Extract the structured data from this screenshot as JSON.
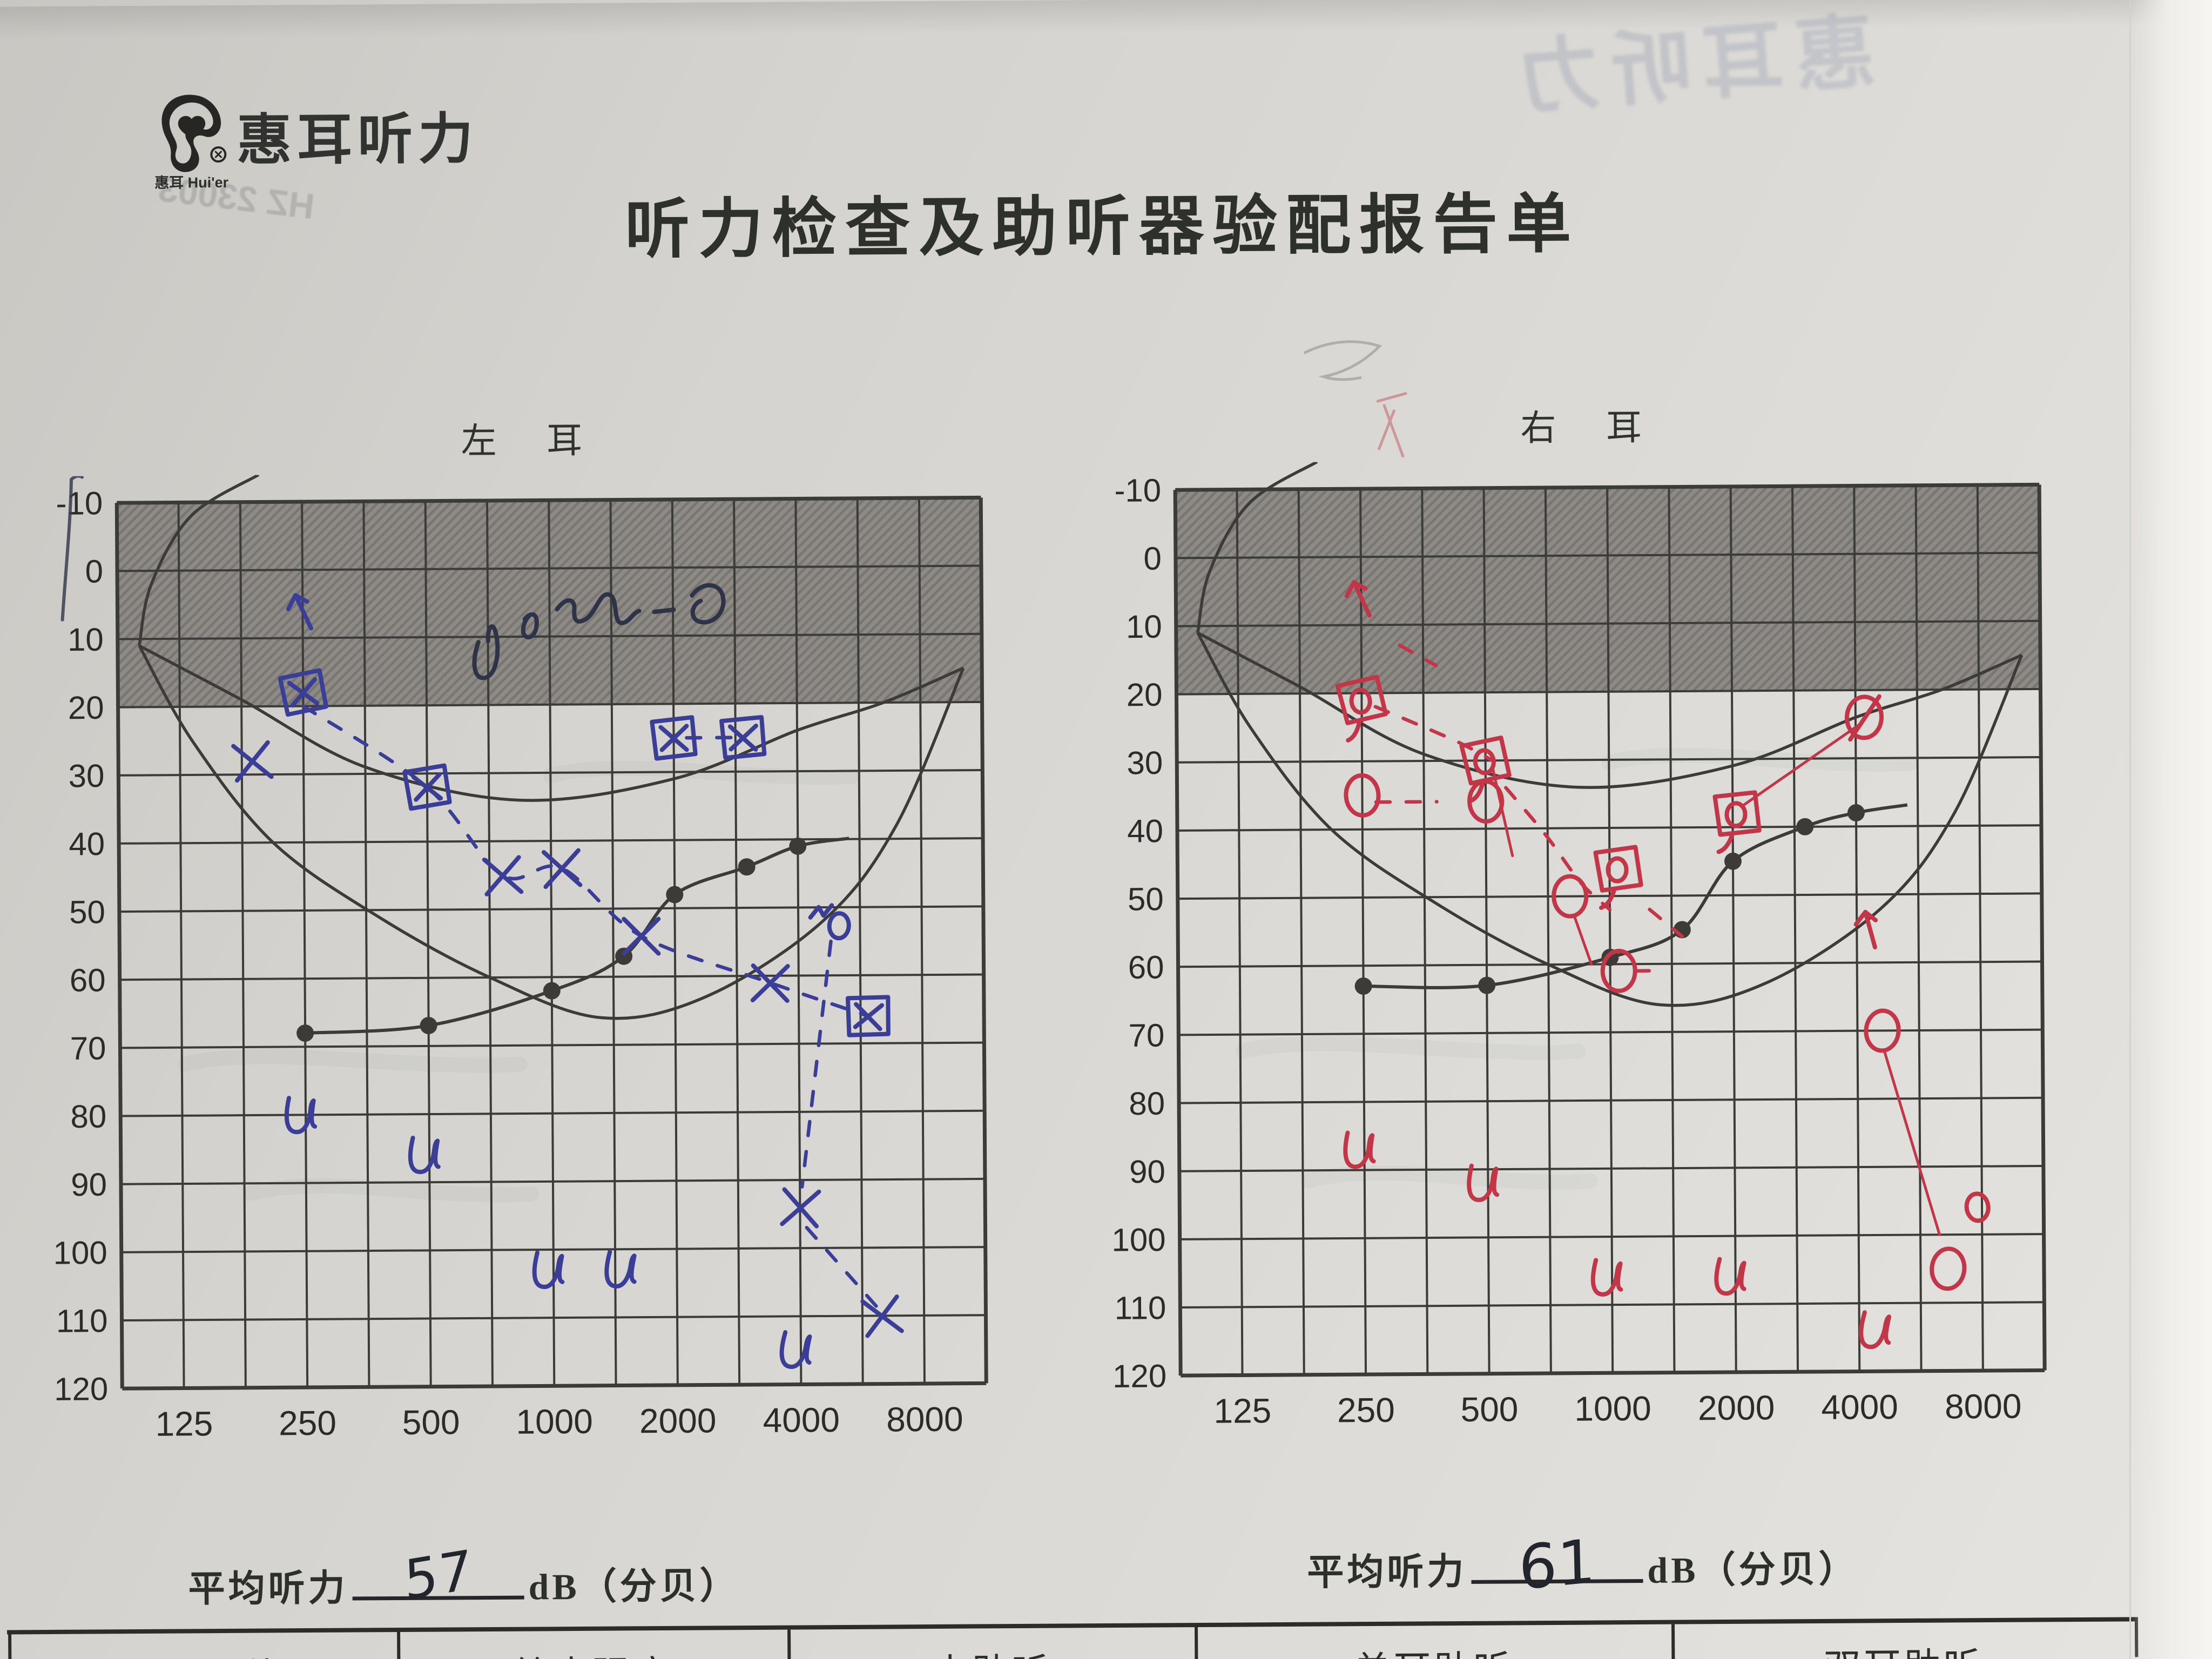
{
  "brand": {
    "logo_text_cn": "惠耳",
    "logo_text_en": "Hui'er",
    "brand_name": "惠耳听力"
  },
  "title": "听力检查及助听器验配报告单",
  "bleed_through_ghosts": [
    "惠耳听力",
    "HZ 23003"
  ],
  "charts": [
    {
      "id": "left",
      "ear_label": "左 耳",
      "ink": "#3b3e97",
      "avg": {
        "label": "平均听力",
        "value": "57",
        "unit": "dB（分贝）"
      },
      "axes": {
        "freq_ticks": [
          "125",
          "250",
          "500",
          "1000",
          "2000",
          "4000",
          "8000"
        ],
        "db_ticks": [
          "-10",
          "0",
          "10",
          "20",
          "30",
          "40",
          "50",
          "60",
          "70",
          "80",
          "90",
          "100",
          "110",
          "120"
        ],
        "db_min": -10,
        "db_max": 120,
        "shaded_range_db": [
          -10,
          20
        ]
      },
      "chart_data": {
        "type": "audiogram",
        "handwritten_note": "蓝笔涂写批注（难以辨认）",
        "aided_sound_field_dots": [
          [
            250,
            68
          ],
          [
            500,
            67
          ],
          [
            1000,
            62
          ],
          [
            1500,
            57
          ],
          [
            2000,
            48
          ],
          [
            3000,
            44
          ],
          [
            4000,
            41
          ]
        ],
        "pen_marks": [
          {
            "f": 250,
            "db": 6,
            "sym": "arrow"
          },
          {
            "f": 250,
            "db": 18,
            "sym": "boxx"
          },
          {
            "f": 187,
            "db": 28,
            "sym": "x"
          },
          {
            "f": 500,
            "db": 32,
            "sym": "boxx"
          },
          {
            "f": 760,
            "db": 45,
            "sym": "x"
          },
          {
            "f": 1060,
            "db": 44,
            "sym": "x"
          },
          {
            "f": 2000,
            "db": 25,
            "sym": "boxx"
          },
          {
            "f": 2950,
            "db": 25,
            "sym": "boxx"
          },
          {
            "f": 1650,
            "db": 54,
            "sym": "x"
          },
          {
            "f": 3400,
            "db": 61,
            "sym": "x"
          },
          {
            "f": 4800,
            "db": 52,
            "sym": "nr"
          },
          {
            "f": 5900,
            "db": 66,
            "sym": "boxx"
          },
          {
            "f": 4000,
            "db": 94,
            "sym": "x"
          },
          {
            "f": 6300,
            "db": 110,
            "sym": "x"
          },
          {
            "f": 250,
            "db": 80,
            "sym": "u"
          },
          {
            "f": 500,
            "db": 86,
            "sym": "u"
          },
          {
            "f": 1000,
            "db": 103,
            "sym": "u"
          },
          {
            "f": 1500,
            "db": 103,
            "sym": "u"
          },
          {
            "f": 4000,
            "db": 115,
            "sym": "u"
          }
        ],
        "dashed_links": [
          [
            [
              250,
              20
            ],
            [
              500,
              32
            ],
            [
              760,
              45
            ],
            [
              1060,
              44
            ],
            [
              1650,
              54
            ],
            [
              3400,
              61
            ],
            [
              5900,
              66
            ]
          ],
          [
            [
              2150,
              25
            ],
            [
              2800,
              25
            ]
          ],
          [
            [
              4800,
              55
            ],
            [
              4050,
              91
            ]
          ],
          [
            [
              4150,
              97
            ],
            [
              6200,
              109
            ]
          ]
        ],
        "solid_links": []
      }
    },
    {
      "id": "right",
      "ear_label": "右 耳",
      "ink": "#c23648",
      "avg": {
        "label": "平均听力",
        "value": "61",
        "unit": "dB（分贝）"
      },
      "axes": {
        "freq_ticks": [
          "125",
          "250",
          "500",
          "1000",
          "2000",
          "4000",
          "8000"
        ],
        "db_ticks": [
          "-10",
          "0",
          "10",
          "20",
          "30",
          "40",
          "50",
          "60",
          "70",
          "80",
          "90",
          "100",
          "110",
          "120"
        ],
        "db_min": -10,
        "db_max": 120,
        "shaded_range_db": [
          -10,
          20
        ]
      },
      "chart_data": {
        "type": "audiogram",
        "handwritten_note": "红笔手写标记（右耳）",
        "aided_sound_field_dots": [
          [
            250,
            63
          ],
          [
            500,
            63
          ],
          [
            1000,
            59
          ],
          [
            1500,
            55
          ],
          [
            2000,
            45
          ],
          [
            3000,
            40
          ],
          [
            4000,
            38
          ]
        ],
        "pen_marks": [
          {
            "f": 250,
            "db": 6,
            "sym": "arrow"
          },
          {
            "f": 250,
            "db": 21,
            "sym": "boxo"
          },
          {
            "f": 500,
            "db": 30,
            "sym": "boxo"
          },
          {
            "f": 250,
            "db": 35,
            "sym": "o"
          },
          {
            "f": 500,
            "db": 36,
            "sym": "o"
          },
          {
            "f": 800,
            "db": 50,
            "sym": "o"
          },
          {
            "f": 1050,
            "db": 46,
            "sym": "boxo"
          },
          {
            "f": 1050,
            "db": 61,
            "sym": "o"
          },
          {
            "f": 2050,
            "db": 38,
            "sym": "boxo"
          },
          {
            "f": 4200,
            "db": 24,
            "sym": "oslash"
          },
          {
            "f": 4300,
            "db": 55,
            "sym": "arrow"
          },
          {
            "f": 4600,
            "db": 70,
            "sym": "o"
          },
          {
            "f": 6600,
            "db": 105,
            "sym": "o"
          },
          {
            "f": 7800,
            "db": 96,
            "sym": "osmall"
          },
          {
            "f": 250,
            "db": 87,
            "sym": "u"
          },
          {
            "f": 500,
            "db": 92,
            "sym": "u"
          },
          {
            "f": 1000,
            "db": 106,
            "sym": "u"
          },
          {
            "f": 2000,
            "db": 106,
            "sym": "u"
          },
          {
            "f": 4500,
            "db": 114,
            "sym": "u"
          }
        ],
        "dashed_links": [
          [
            [
              270,
              22
            ],
            [
              420,
              27
            ],
            [
              520,
              30
            ]
          ],
          [
            [
              560,
              34
            ],
            [
              700,
              41
            ],
            [
              850,
              48
            ],
            [
              1000,
              52
            ]
          ],
          [
            [
              310,
              13
            ],
            [
              380,
              16
            ]
          ],
          [
            [
              1250,
              52
            ],
            [
              1500,
              56
            ]
          ],
          [
            [
              270,
              36
            ],
            [
              380,
              36
            ]
          ],
          [
            [
              1150,
              61
            ],
            [
              1320,
              61
            ]
          ]
        ],
        "solid_links": [
          [
            [
              2100,
              37
            ],
            [
              4100,
              25
            ]
          ],
          [
            [
              4650,
              73
            ],
            [
              6300,
              100
            ]
          ],
          [
            [
              520,
              31
            ],
            [
              580,
              44
            ]
          ],
          [
            [
              820,
              53
            ],
            [
              900,
              60
            ]
          ]
        ]
      }
    }
  ],
  "footer_table": {
    "headers": [
      "言语评估",
      "给声强度",
      "未助听",
      "单耳助听",
      "双耳助听"
    ]
  }
}
